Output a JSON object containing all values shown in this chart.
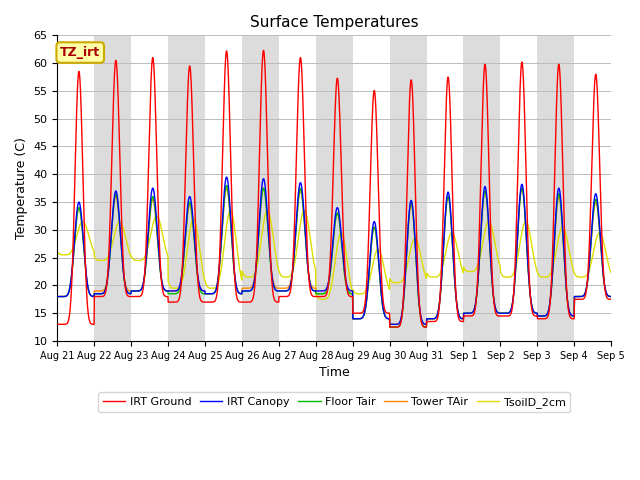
{
  "title": "Surface Temperatures",
  "xlabel": "Time",
  "ylabel": "Temperature (C)",
  "ylim": [
    10,
    65
  ],
  "annotation_text": "TZ_irt",
  "annotation_bbox": {
    "facecolor": "#FFFFAA",
    "edgecolor": "#CCAA00"
  },
  "annotation_color": "#AA0000",
  "series_colors": {
    "IRT Ground": "#FF0000",
    "IRT Canopy": "#0000FF",
    "Floor Tair": "#00BB00",
    "Tower TAir": "#FF8800",
    "TsoilD_2cm": "#DDDD00"
  },
  "background_stripe_color": "#DCDCDC",
  "n_days": 15,
  "day_peaks_irt": [
    58.5,
    60.5,
    61.0,
    59.5,
    62.2,
    62.3,
    61.0,
    57.3,
    55.1,
    57.0,
    57.5,
    59.8,
    60.2,
    59.8,
    58.0
  ],
  "day_peaks_canopy": [
    35.0,
    37.0,
    37.5,
    36.0,
    39.5,
    39.2,
    38.5,
    34.0,
    31.5,
    35.3,
    36.8,
    37.8,
    38.2,
    37.5,
    36.5
  ],
  "day_peaks_floor": [
    34.0,
    36.5,
    36.0,
    35.0,
    38.0,
    37.5,
    37.5,
    33.0,
    30.5,
    35.0,
    36.0,
    37.0,
    37.5,
    36.5,
    35.5
  ],
  "day_peaks_tower": [
    34.0,
    36.0,
    35.5,
    34.5,
    37.5,
    37.5,
    37.0,
    33.0,
    30.5,
    34.5,
    36.0,
    37.0,
    37.5,
    36.0,
    35.0
  ],
  "day_peaks_soil": [
    31.5,
    31.5,
    32.5,
    32.0,
    33.5,
    33.5,
    33.5,
    29.5,
    26.5,
    28.5,
    29.5,
    31.5,
    31.5,
    30.5,
    29.5
  ],
  "night_min_irt": [
    13.0,
    18.0,
    18.0,
    17.0,
    17.0,
    17.0,
    18.0,
    18.0,
    15.0,
    12.5,
    13.5,
    14.5,
    14.5,
    14.0,
    17.5
  ],
  "night_min_canopy": [
    18.0,
    18.5,
    19.0,
    19.0,
    18.5,
    19.0,
    19.0,
    19.0,
    14.0,
    13.0,
    14.0,
    15.0,
    15.0,
    14.5,
    18.0
  ],
  "night_min_floor": [
    18.0,
    18.5,
    19.0,
    18.5,
    18.5,
    19.0,
    19.0,
    18.5,
    14.0,
    12.5,
    14.0,
    15.0,
    15.0,
    14.5,
    18.0
  ],
  "night_min_tower": [
    18.0,
    19.0,
    19.0,
    19.0,
    18.5,
    19.5,
    19.5,
    18.5,
    14.0,
    13.0,
    14.0,
    15.0,
    15.0,
    14.5,
    18.0
  ],
  "night_min_soil": [
    25.5,
    24.5,
    24.5,
    19.5,
    19.5,
    21.5,
    21.5,
    17.5,
    18.5,
    20.5,
    21.5,
    22.5,
    21.5,
    21.5,
    21.5
  ],
  "tick_labels": [
    "Aug 21",
    "Aug 22",
    "Aug 23",
    "Aug 24",
    "Aug 25",
    "Aug 26",
    "Aug 27",
    "Aug 28",
    "Aug 29",
    "Aug 30",
    "Aug 31",
    "Sep 1",
    "Sep 2",
    "Sep 3",
    "Sep 4",
    "Sep 5"
  ],
  "grid_color": "#BBBBBB",
  "legend_ncol": 5,
  "pts_per_day": 144,
  "peak_hour": 14.0,
  "peak_sharpness_irt": 4.5,
  "peak_sharpness_other": 3.5,
  "soil_peak_hour": 16.5,
  "soil_sharpness": 2.0
}
